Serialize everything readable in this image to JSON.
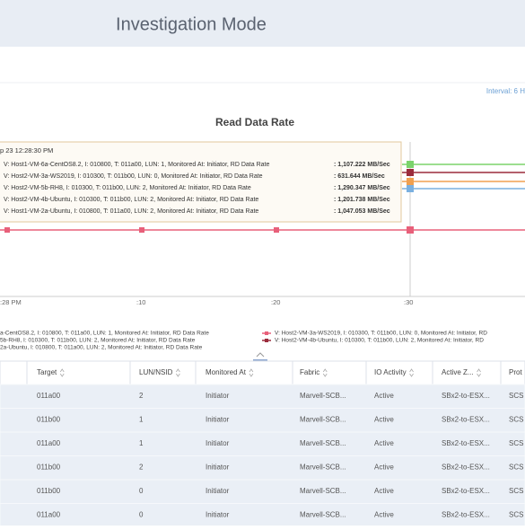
{
  "header": {
    "title": "Investigation Mode"
  },
  "interval": "Interval: 6 H",
  "chart": {
    "title": "Read Data Rate",
    "tooltip": {
      "time": "p 23 12:28:30 PM",
      "rows": [
        {
          "label": "V: Host1-VM-6a-CentOS8.2, I: 010800, T: 011a00, LUN: 1, Monitored At: Initiator, RD Data Rate",
          "value": ": 1,107.222 MB/Sec"
        },
        {
          "label": "V: Host2-VM-3a-WS2019, I: 010300, T: 011b00, LUN: 0, Monitored At: Initiator, RD Data Rate",
          "value": ": 631.644 MB/Sec"
        },
        {
          "label": "V: Host2-VM-5b-RH8, I: 010300, T: 011b00, LUN: 2, Monitored At: Initiator, RD Data Rate",
          "value": ": 1,290.347 MB/Sec"
        },
        {
          "label": "V: Host2-VM-4b-Ubuntu, I: 010300, T: 011b00, LUN: 2, Monitored At: Initiator, RD Data Rate",
          "value": ": 1,201.738 MB/Sec"
        },
        {
          "label": "V: Host1-VM-2a-Ubuntu, I: 010800, T: 011a00, LUN: 2, Monitored At: Initiator, RD Data Rate",
          "value": ": 1,047.053 MB/Sec"
        }
      ]
    },
    "xlabels": [
      ":28 PM",
      ":10",
      ":20",
      ":30"
    ],
    "legend_left": [
      "a-CentOS8.2, I: 010800, T: 011a00, LUN: 1, Monitored At: Initiator, RD Data Rate",
      "5b-RH8, I: 010300, T: 011b00, LUN: 2, Monitored At: Initiator, RD Data Rate",
      "2a-Ubuntu, I: 010800, T: 011a00, LUN: 2, Monitored At: Initiator, RD Data Rate"
    ],
    "legend_right": [
      "V: Host2-VM-3a-WS2019, I: 010300, T: 011b00, LUN: 0, Monitored At: Initiator, RD",
      "V: Host2-VM-4b-Ubuntu, I: 010300, T: 011b00, LUN: 2, Monitored At: Initiator, RD"
    ]
  },
  "table": {
    "headers": [
      "Target",
      "LUN/NSID",
      "Monitored At",
      "Fabric",
      "IO Activity",
      "Active Z...",
      "Prot"
    ],
    "rows": [
      [
        "011a00",
        "2",
        "Initiator",
        "Marvell-SCB...",
        "Active",
        "SBx2-to-ESX...",
        "SCS"
      ],
      [
        "011b00",
        "1",
        "Initiator",
        "Marvell-SCB...",
        "Active",
        "SBx2-to-ESX...",
        "SCS"
      ],
      [
        "011a00",
        "1",
        "Initiator",
        "Marvell-SCB...",
        "Active",
        "SBx2-to-ESX...",
        "SCS"
      ],
      [
        "011b00",
        "2",
        "Initiator",
        "Marvell-SCB...",
        "Active",
        "SBx2-to-ESX...",
        "SCS"
      ],
      [
        "011b00",
        "0",
        "Initiator",
        "Marvell-SCB...",
        "Active",
        "SBx2-to-ESX...",
        "SCS"
      ],
      [
        "011a00",
        "0",
        "Initiator",
        "Marvell-SCB...",
        "Active",
        "SBx2-to-ESX...",
        "SCS"
      ]
    ]
  }
}
